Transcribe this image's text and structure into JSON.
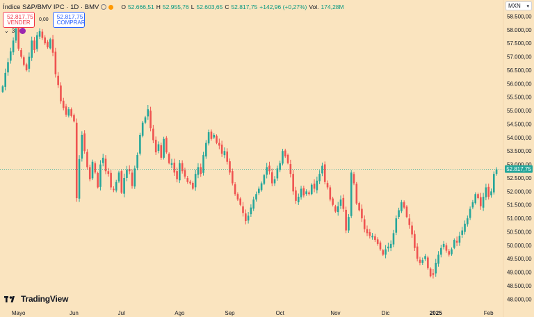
{
  "legend": {
    "title": "Índice S&P/BMV IPC · 1D · BMV",
    "open_label": "O",
    "open": "52.666,51",
    "high_label": "H",
    "high": "52.955,76",
    "low_label": "L",
    "low": "52.603,65",
    "close_label": "C",
    "close": "52.817,75",
    "change": "+142,96 (+0,27%)",
    "volume_label": "Vol.",
    "volume": "174,28M",
    "icons": [
      "eye-icon",
      "dollar-icon"
    ]
  },
  "trade": {
    "sell_price": "52.817,75",
    "sell_label": "VENDER",
    "spread": "0,00",
    "buy_price": "52.817,75",
    "buy_label": "COMPRAR"
  },
  "indicators": {
    "count": "3"
  },
  "currency": {
    "label": "MXN"
  },
  "logo": {
    "text": "TradingView"
  },
  "colors": {
    "background": "#fae4bf",
    "up": "#26a69a",
    "down": "#ef5350",
    "axis_text": "#131722",
    "price_badge": "#26a69a"
  },
  "chart_data": {
    "type": "candlestick",
    "title": "Índice S&P/BMV IPC · 1D · BMV",
    "ylim": [
      47750,
      58900
    ],
    "y_ticks": [
      48000,
      48500,
      49000,
      49500,
      50000,
      50500,
      51000,
      51500,
      52000,
      52500,
      53000,
      53500,
      54000,
      54500,
      55000,
      55500,
      56000,
      56500,
      57000,
      57500,
      58000,
      58500
    ],
    "y_tick_labels": [
      "48.000,00",
      "48.500,00",
      "49.000,00",
      "49.500,00",
      "50.000,00",
      "50.500,00",
      "51.000,00",
      "51.500,00",
      "52.000,00",
      "52.500,00",
      "53.000,00",
      "53.500,00",
      "54.000,00",
      "54.500,00",
      "55.000,00",
      "55.500,00",
      "56.000,00",
      "56.500,00",
      "57.000,00",
      "57.500,00",
      "58.000,00",
      "58.500,00"
    ],
    "x_ticks": [
      {
        "label": "Mayo",
        "index": 6,
        "bold": false
      },
      {
        "label": "Jun",
        "index": 27,
        "bold": false
      },
      {
        "label": "Jul",
        "index": 45,
        "bold": false
      },
      {
        "label": "Ago",
        "index": 67,
        "bold": false
      },
      {
        "label": "Sep",
        "index": 86,
        "bold": false
      },
      {
        "label": "Oct",
        "index": 105,
        "bold": false
      },
      {
        "label": "Nov",
        "index": 126,
        "bold": false
      },
      {
        "label": "Dic",
        "index": 145,
        "bold": false
      },
      {
        "label": "2025",
        "index": 164,
        "bold": true
      },
      {
        "label": "Feb",
        "index": 184,
        "bold": false
      }
    ],
    "last_price": 52817.75,
    "last_price_label": "52.817,75",
    "grid": false,
    "closes": [
      55900,
      56400,
      56800,
      57200,
      57600,
      58050,
      57300,
      57000,
      56700,
      56500,
      57000,
      57600,
      57250,
      57800,
      57950,
      57700,
      57500,
      57350,
      57650,
      57150,
      56350,
      55950,
      55350,
      55100,
      54850,
      55050,
      54800,
      54600,
      51750,
      53200,
      54100,
      53500,
      52900,
      52450,
      53100,
      52700,
      52150,
      53000,
      53250,
      52750,
      52650,
      52150,
      52050,
      52350,
      52700,
      51950,
      52500,
      52800,
      52750,
      52200,
      52850,
      53350,
      54100,
      54550,
      54750,
      55050,
      54350,
      53900,
      53450,
      53750,
      53250,
      53950,
      53450,
      53050,
      53050,
      52700,
      52450,
      53050,
      52750,
      52550,
      52350,
      52300,
      52100,
      52650,
      52900,
      52650,
      53350,
      53800,
      54200,
      53950,
      54100,
      53800,
      53700,
      53400,
      53500,
      53100,
      52700,
      52300,
      51900,
      51700,
      51500,
      51200,
      50900,
      51100,
      51400,
      51700,
      51900,
      52100,
      52300,
      52600,
      52900,
      52750,
      52300,
      52450,
      52850,
      53050,
      53500,
      53300,
      53050,
      52650,
      52000,
      51650,
      51800,
      52100,
      51850,
      52000,
      51900,
      52250,
      52100,
      52400,
      52650,
      52950,
      52350,
      52150,
      51700,
      51500,
      51250,
      51450,
      51700,
      51350,
      50550,
      51050,
      52700,
      52300,
      51550,
      51300,
      51000,
      50600,
      50450,
      50350,
      50350,
      50200,
      50050,
      49850,
      49650,
      49850,
      49950,
      50050,
      50450,
      51000,
      51300,
      51600,
      51400,
      51050,
      50750,
      50400,
      49900,
      49500,
      49350,
      49450,
      49600,
      49150,
      48850,
      48900,
      49350,
      49650,
      49900,
      50050,
      49800,
      49650,
      49850,
      50200,
      50100,
      50350,
      50550,
      50800,
      51000,
      51350,
      51600,
      51900,
      51750,
      51450,
      51800,
      52150,
      51800,
      52000,
      52650,
      52817.75
    ]
  }
}
